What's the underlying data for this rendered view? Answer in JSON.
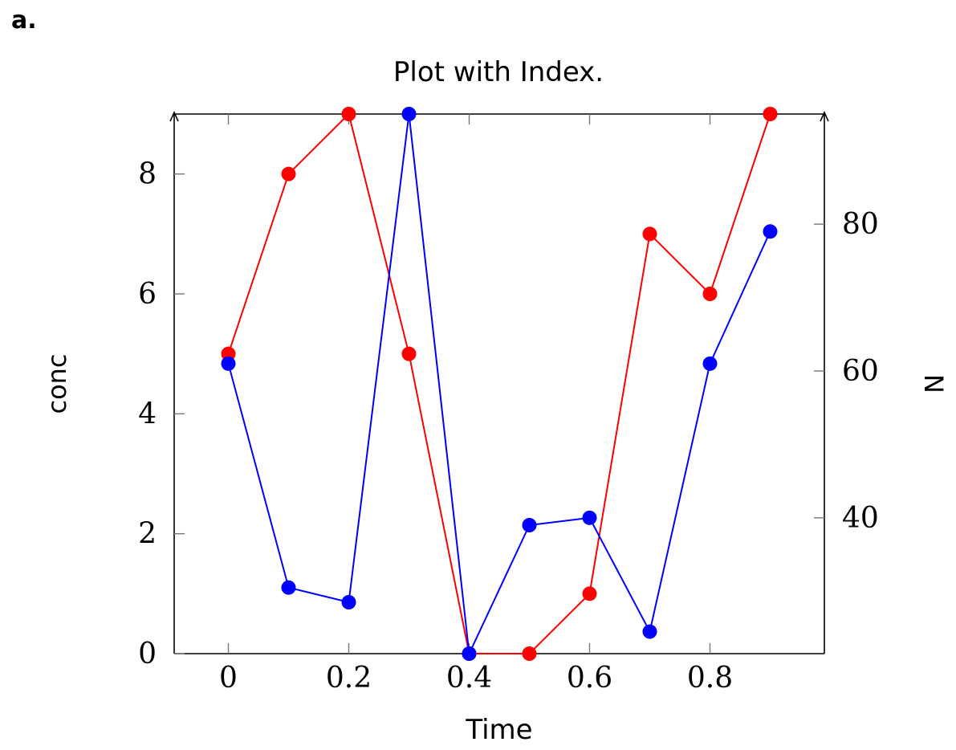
{
  "panel_label": "a.",
  "chart_data": {
    "type": "line",
    "title": "Plot with Index.",
    "xlabel": "Time",
    "ylabel": "conc",
    "ylabel_right": "N",
    "xlim": [
      -0.09,
      0.99
    ],
    "ylim": [
      0,
      9
    ],
    "ylim_right": [
      21.5,
      95
    ],
    "x_ticks": [
      0,
      0.2,
      0.4,
      0.6,
      0.8
    ],
    "x_tick_labels": [
      "0",
      "0.2",
      "0.4",
      "0.6",
      "0.8"
    ],
    "y_ticks": [
      0,
      2,
      4,
      6,
      8
    ],
    "y_tick_labels": [
      "0",
      "2",
      "4",
      "6",
      "8"
    ],
    "y_right_ticks": [
      40,
      60,
      80
    ],
    "y_right_tick_labels": [
      "40",
      "60",
      "80"
    ],
    "x": [
      0,
      0.1,
      0.2,
      0.3,
      0.4,
      0.5,
      0.6,
      0.7,
      0.8,
      0.9
    ],
    "series": [
      {
        "axis": "left",
        "color": "#ff0000",
        "x": [
          0,
          0.1,
          0.2,
          0.3,
          0.4,
          0.5,
          0.6,
          0.7,
          0.8,
          0.9
        ],
        "values": [
          5,
          8,
          9,
          5,
          0,
          0,
          1,
          7,
          6,
          9
        ]
      },
      {
        "axis": "right",
        "color": "#0000ff",
        "x": [
          0,
          0.1,
          0.2,
          0.3,
          0.4,
          0.5,
          0.6,
          0.7,
          0.8,
          0.9
        ],
        "values": [
          61,
          30.5,
          28.5,
          95,
          21.5,
          39,
          40,
          24.5,
          61,
          79
        ]
      }
    ],
    "grid": false,
    "legend": "none"
  }
}
